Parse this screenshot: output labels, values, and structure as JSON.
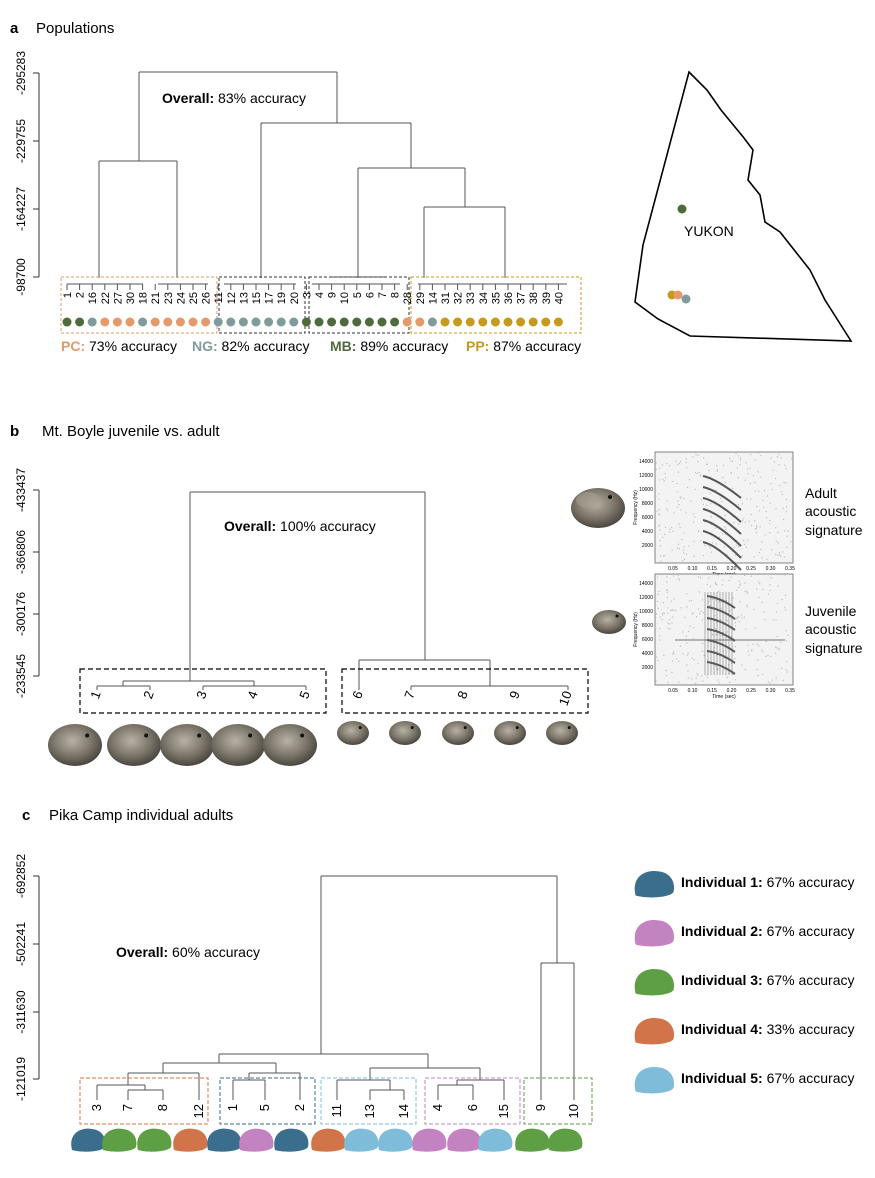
{
  "colors": {
    "MB": "#4f6b3d",
    "NG": "#7f9b9b",
    "PC": "#e49a6a",
    "PP": "#c59a1f",
    "ind1": "#3b6e8c",
    "ind2": "#c383c0",
    "ind3": "#5e9e45",
    "ind4": "#d2744a",
    "ind5": "#7fbcd9",
    "line": "#555555"
  },
  "chart_data": [
    {
      "type": "dendrogram",
      "panel": "a",
      "title": "Populations",
      "y_ticks": [
        "-295283",
        "-229755",
        "-164227",
        "-98700"
      ],
      "leaves": [
        {
          "label": "1",
          "group": "MB"
        },
        {
          "label": "2",
          "group": "MB"
        },
        {
          "label": "16",
          "group": "NG"
        },
        {
          "label": "22",
          "group": "PC"
        },
        {
          "label": "27",
          "group": "PC"
        },
        {
          "label": "30",
          "group": "PC"
        },
        {
          "label": "18",
          "group": "NG"
        },
        {
          "label": "21",
          "group": "PC"
        },
        {
          "label": "23",
          "group": "PC"
        },
        {
          "label": "24",
          "group": "PC"
        },
        {
          "label": "25",
          "group": "PC"
        },
        {
          "label": "26",
          "group": "PC"
        },
        {
          "label": "11",
          "group": "NG"
        },
        {
          "label": "12",
          "group": "NG"
        },
        {
          "label": "13",
          "group": "NG"
        },
        {
          "label": "15",
          "group": "NG"
        },
        {
          "label": "17",
          "group": "NG"
        },
        {
          "label": "19",
          "group": "NG"
        },
        {
          "label": "20",
          "group": "NG"
        },
        {
          "label": "3",
          "group": "MB"
        },
        {
          "label": "4",
          "group": "MB"
        },
        {
          "label": "9",
          "group": "MB"
        },
        {
          "label": "10",
          "group": "MB"
        },
        {
          "label": "5",
          "group": "MB"
        },
        {
          "label": "6",
          "group": "MB"
        },
        {
          "label": "7",
          "group": "MB"
        },
        {
          "label": "8",
          "group": "MB"
        },
        {
          "label": "28",
          "group": "PC"
        },
        {
          "label": "29",
          "group": "PC"
        },
        {
          "label": "14",
          "group": "NG"
        },
        {
          "label": "31",
          "group": "PP"
        },
        {
          "label": "32",
          "group": "PP"
        },
        {
          "label": "33",
          "group": "PP"
        },
        {
          "label": "34",
          "group": "PP"
        },
        {
          "label": "35",
          "group": "PP"
        },
        {
          "label": "36",
          "group": "PP"
        },
        {
          "label": "37",
          "group": "PP"
        },
        {
          "label": "38",
          "group": "PP"
        },
        {
          "label": "39",
          "group": "PP"
        },
        {
          "label": "40",
          "group": "PP"
        }
      ],
      "overall_label": "Overall:",
      "overall_value": "83% accuracy",
      "group_accuracy": [
        {
          "key": "PC",
          "label": "PC:",
          "value": "73% accuracy"
        },
        {
          "key": "NG",
          "label": "NG:",
          "value": "82% accuracy"
        },
        {
          "key": "MB",
          "label": "MB:",
          "value": "89% accuracy"
        },
        {
          "key": "PP",
          "label": "PP:",
          "value": "87% accuracy"
        }
      ],
      "map_label": "YUKON"
    },
    {
      "type": "dendrogram",
      "panel": "b",
      "title": "Mt. Boyle juvenile vs. adult",
      "y_ticks": [
        "-433437",
        "-366806",
        "-300176",
        "-233545"
      ],
      "leaves": [
        "1",
        "2",
        "3",
        "4",
        "5",
        "6",
        "7",
        "8",
        "9",
        "10"
      ],
      "overall_label": "Overall:",
      "overall_value": "100% accuracy",
      "signatures": [
        {
          "label": "Adult\nacoustic\nsignature",
          "lines": [
            "Adult",
            "acoustic",
            "signature"
          ]
        },
        {
          "label": "Juvenile\nacoustic\nsignature",
          "lines": [
            "Juvenile",
            "acoustic",
            "signature"
          ]
        }
      ],
      "spectrogram": {
        "y_label": "Frequency (Hz)",
        "y_ticks": [
          "2000",
          "4000",
          "6000",
          "8000",
          "10000",
          "12000",
          "14000"
        ],
        "x_label": "Time (sec)",
        "x_ticks": [
          "0.05",
          "0.10",
          "0.15",
          "0.20",
          "0.25",
          "0.30",
          "0.35"
        ]
      }
    },
    {
      "type": "dendrogram",
      "panel": "c",
      "title": "Pika Camp individual adults",
      "y_ticks": [
        "-692852",
        "-502241",
        "-311630",
        "-121019"
      ],
      "leaves": [
        {
          "label": "3",
          "ind": "ind1"
        },
        {
          "label": "7",
          "ind": "ind3"
        },
        {
          "label": "8",
          "ind": "ind3"
        },
        {
          "label": "12",
          "ind": "ind4"
        },
        {
          "label": "1",
          "ind": "ind1"
        },
        {
          "label": "5",
          "ind": "ind2"
        },
        {
          "label": "2",
          "ind": "ind1"
        },
        {
          "label": "11",
          "ind": "ind4"
        },
        {
          "label": "13",
          "ind": "ind5"
        },
        {
          "label": "14",
          "ind": "ind5"
        },
        {
          "label": "4",
          "ind": "ind2"
        },
        {
          "label": "6",
          "ind": "ind2"
        },
        {
          "label": "15",
          "ind": "ind5"
        },
        {
          "label": "9",
          "ind": "ind3"
        },
        {
          "label": "10",
          "ind": "ind3"
        }
      ],
      "overall_label": "Overall:",
      "overall_value": "60% accuracy",
      "legend": [
        {
          "key": "ind1",
          "label": "Individual 1:",
          "value": "67% accuracy"
        },
        {
          "key": "ind2",
          "label": "Individual 2:",
          "value": "67% accuracy"
        },
        {
          "key": "ind3",
          "label": "Individual 3:",
          "value": "67% accuracy"
        },
        {
          "key": "ind4",
          "label": "Individual 4:",
          "value": "33% accuracy"
        },
        {
          "key": "ind5",
          "label": "Individual 5:",
          "value": "67% accuracy"
        }
      ]
    }
  ],
  "panel_letters": [
    "a",
    "b",
    "c"
  ]
}
